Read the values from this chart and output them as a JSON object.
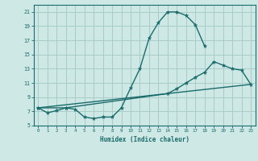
{
  "xlabel": "Humidex (Indice chaleur)",
  "bg_color": "#cde8e5",
  "grid_color": "#a8ccc9",
  "line_color": "#1a6b6b",
  "xlim": [
    -0.5,
    23.5
  ],
  "ylim": [
    5,
    22
  ],
  "yticks": [
    5,
    7,
    9,
    11,
    13,
    15,
    17,
    19,
    21
  ],
  "xticks": [
    0,
    1,
    2,
    3,
    4,
    5,
    6,
    7,
    8,
    9,
    10,
    11,
    12,
    13,
    14,
    15,
    16,
    17,
    18,
    19,
    20,
    21,
    22,
    23
  ],
  "curve1_x": [
    0,
    1,
    2,
    3,
    4,
    5,
    6,
    7,
    8,
    9,
    10,
    11,
    12,
    13,
    14,
    15,
    16,
    17,
    18
  ],
  "curve1_y": [
    7.5,
    6.8,
    7.1,
    7.5,
    7.3,
    6.2,
    6.0,
    6.2,
    6.2,
    7.5,
    10.3,
    13.0,
    17.3,
    19.5,
    21.0,
    21.0,
    20.5,
    19.2,
    16.2
  ],
  "curve2_x": [
    0,
    3,
    14,
    15,
    16,
    17,
    18,
    19,
    20,
    21,
    22,
    23
  ],
  "curve2_y": [
    7.5,
    7.5,
    9.5,
    10.2,
    11.0,
    11.8,
    12.5,
    14.0,
    13.5,
    13.0,
    12.8,
    10.8
  ],
  "curve3_x": [
    0,
    23
  ],
  "curve3_y": [
    7.5,
    10.8
  ]
}
